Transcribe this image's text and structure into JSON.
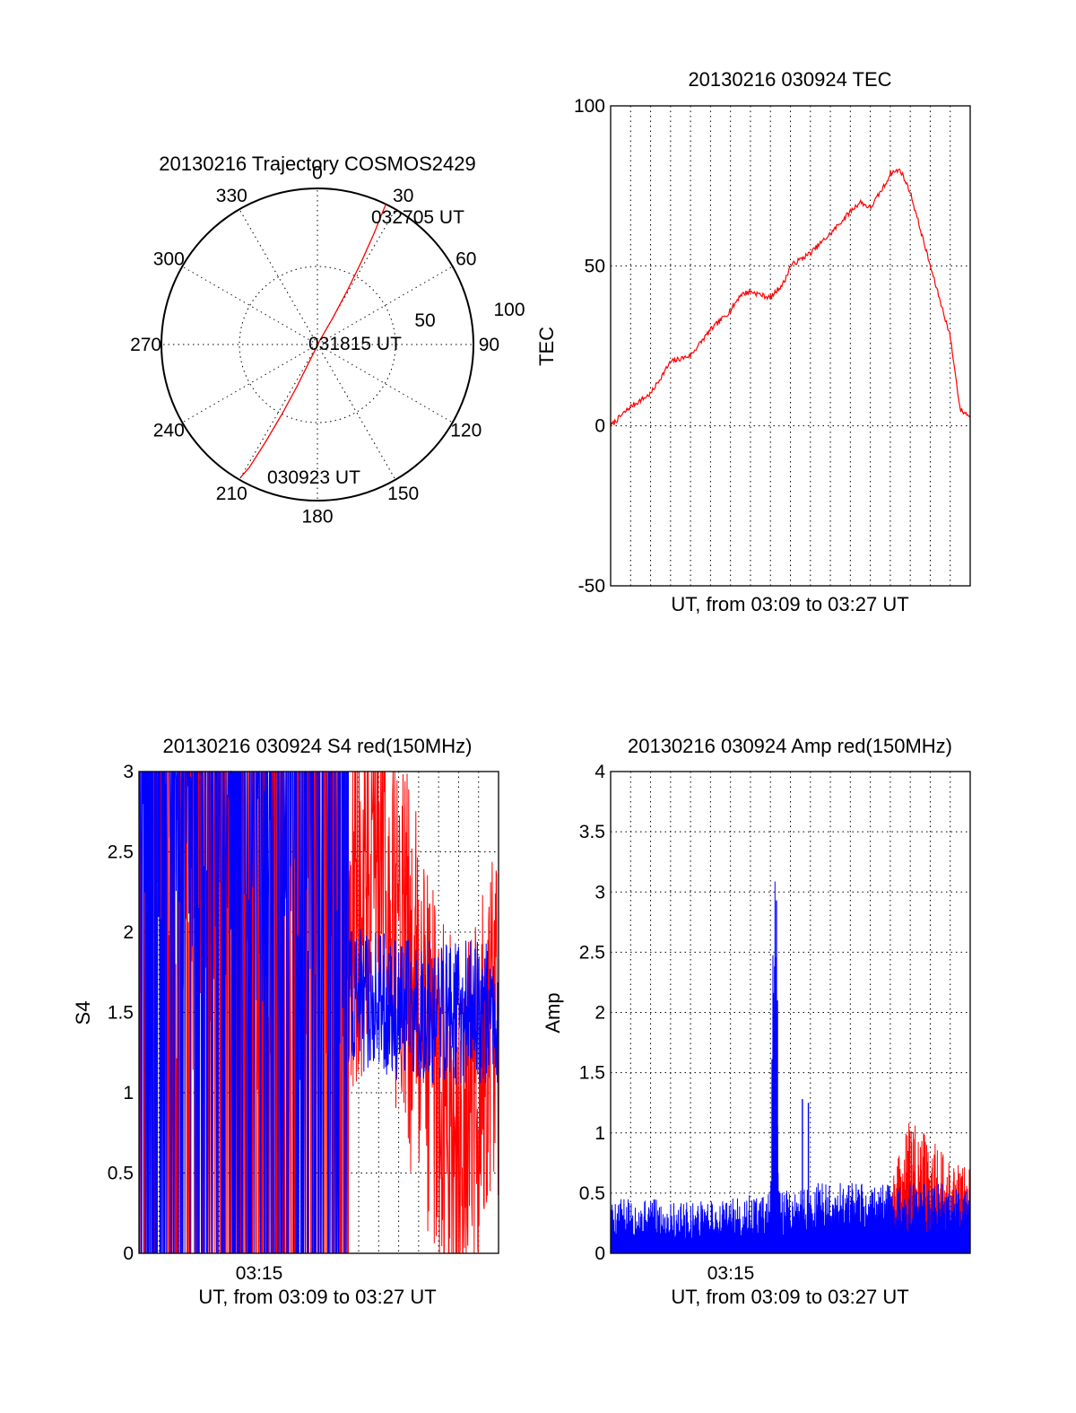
{
  "chart_data": [
    {
      "type": "polar",
      "title": "20130216 Trajectory COSMOS2429",
      "angle_ticks": [
        "0",
        "30",
        "60",
        "90",
        "120",
        "150",
        "180",
        "210",
        "240",
        "270",
        "300",
        "330"
      ],
      "radial_ticks": [
        "50",
        "100"
      ],
      "rlim": [
        0,
        100
      ],
      "grid": true,
      "series": [
        {
          "color": "#ff0000",
          "points": [
            {
              "az": 26,
              "r": 100
            },
            {
              "az": 27,
              "r": 80
            },
            {
              "az": 28,
              "r": 60
            },
            {
              "az": 29,
              "r": 40
            },
            {
              "az": 30,
              "r": 20
            },
            {
              "az": 30,
              "r": 3
            },
            {
              "az": 205,
              "r": 10
            },
            {
              "az": 206,
              "r": 30
            },
            {
              "az": 207,
              "r": 50
            },
            {
              "az": 208,
              "r": 70
            },
            {
              "az": 209,
              "r": 90
            },
            {
              "az": 210,
              "r": 98
            }
          ]
        }
      ],
      "annotations": [
        {
          "text": "032705 UT",
          "az": 26,
          "r": 100
        },
        {
          "text": "031815 UT",
          "az": 0,
          "r": 0
        },
        {
          "text": "030923 UT",
          "az": 210,
          "r": 98
        }
      ]
    },
    {
      "type": "line",
      "title": "20130216 030924 TEC",
      "xlabel": "UT, from 03:09 to 03:27 UT",
      "ylabel": "TEC",
      "xlim": [
        0,
        18
      ],
      "ylim": [
        -50,
        100
      ],
      "yticks": [
        "-50",
        "0",
        "50",
        "100"
      ],
      "grid": true,
      "series": [
        {
          "color": "#ff0000",
          "x": [
            0,
            1,
            2,
            3,
            4,
            5,
            6,
            6.5,
            7,
            8,
            8.7,
            9,
            10,
            11,
            12,
            12.5,
            13,
            13.8,
            14,
            14.5,
            15,
            16,
            17,
            17.5,
            18
          ],
          "y": [
            0,
            6,
            10,
            20,
            22,
            30,
            36,
            41,
            42,
            40,
            45,
            50,
            54,
            60,
            67,
            70,
            68,
            76,
            79,
            80,
            73,
            50,
            28,
            5,
            3
          ]
        }
      ]
    },
    {
      "type": "line",
      "title": "20130216 030924 S4 red(150MHz)",
      "xlabel": "UT, from 03:09 to 03:27 UT",
      "ylabel": "S4",
      "xlim": [
        0,
        18
      ],
      "ylim": [
        0,
        3
      ],
      "yticks": [
        "0",
        "0.5",
        "1",
        "1.5",
        "2",
        "2.5",
        "3"
      ],
      "xtick_labels": [
        "03:15"
      ],
      "grid": true,
      "series": [
        {
          "color": "#0000ff",
          "x": [
            0,
            2,
            4,
            6,
            8,
            10,
            12,
            14,
            16,
            18
          ],
          "y": [
            3,
            2.6,
            2.5,
            2.2,
            1.8,
            1.6,
            1.55,
            1.5,
            1.5,
            1.5
          ]
        },
        {
          "color": "#ff0000",
          "x": [
            0,
            2,
            4,
            6,
            8,
            10,
            12,
            14,
            16,
            18
          ],
          "y": [
            3,
            1.5,
            2.0,
            1.5,
            1.5,
            2.0,
            2.5,
            1.5,
            0.6,
            1.5
          ]
        }
      ]
    },
    {
      "type": "line",
      "title": "20130216 030924 Amp red(150MHz)",
      "xlabel": "UT, from 03:09 to 03:27 UT",
      "ylabel": "Amp",
      "xlim": [
        0,
        18
      ],
      "ylim": [
        0,
        4
      ],
      "yticks": [
        "0",
        "0.5",
        "1",
        "1.5",
        "2",
        "2.5",
        "3",
        "3.5",
        "4"
      ],
      "xtick_labels": [
        "03:15"
      ],
      "grid": true,
      "series": [
        {
          "color": "#0000ff",
          "x": [
            0,
            2,
            4,
            6,
            8,
            8.2,
            8.4,
            10,
            12,
            14,
            16,
            18
          ],
          "y": [
            0.35,
            0.35,
            0.33,
            0.35,
            0.4,
            2.9,
            0.4,
            0.45,
            0.45,
            0.45,
            0.45,
            0.45
          ]
        },
        {
          "color": "#ff0000",
          "x": [
            14,
            15,
            16,
            17,
            18
          ],
          "y": [
            0.45,
            0.8,
            0.7,
            0.55,
            0.5
          ]
        }
      ]
    }
  ]
}
